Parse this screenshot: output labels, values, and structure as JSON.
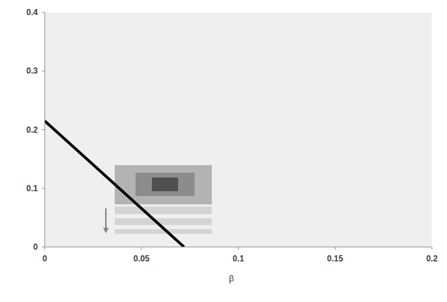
{
  "chart_data": {
    "type": "line",
    "x_label": "β",
    "xlim": [
      0,
      0.2
    ],
    "xticks": [
      0,
      0.05,
      0.1,
      0.15,
      0.2
    ],
    "ylim": [
      0,
      0.4
    ],
    "yticks": [
      0,
      0.1,
      0.2,
      0.3,
      0.4
    ],
    "grid": false,
    "series": [
      {
        "x": [
          0,
          0.072
        ],
        "values": [
          0.215,
          0
        ],
        "color": "#000000"
      }
    ],
    "regions": [
      {
        "x": [
          0.0362,
          0.0863
        ],
        "y": [
          0.0727,
          0.1396
        ],
        "color": "#b3b3b3"
      },
      {
        "x": [
          0.0469,
          0.0774
        ],
        "y": [
          0.0868,
          0.1267
        ],
        "color": "#8c8c8c"
      },
      {
        "x": [
          0.0554,
          0.0689
        ],
        "y": [
          0.095,
          0.1185
        ],
        "color": "#4f4f4f"
      },
      {
        "x": [
          0.0362,
          0.0863
        ],
        "y": [
          0.056,
          0.069
        ],
        "color": "#d4d4d4"
      },
      {
        "x": [
          0.0362,
          0.0863
        ],
        "y": [
          0.0375,
          0.049
        ],
        "color": "#d4d4d4"
      },
      {
        "x": [
          0.0362,
          0.0863
        ],
        "y": [
          0.0223,
          0.0305
        ],
        "color": "#d4d4d4"
      }
    ],
    "arrows": [
      {
        "x": 0.0316,
        "y_from": 0.066,
        "y_to": 0.028,
        "color": "#7f7f7f"
      }
    ]
  }
}
